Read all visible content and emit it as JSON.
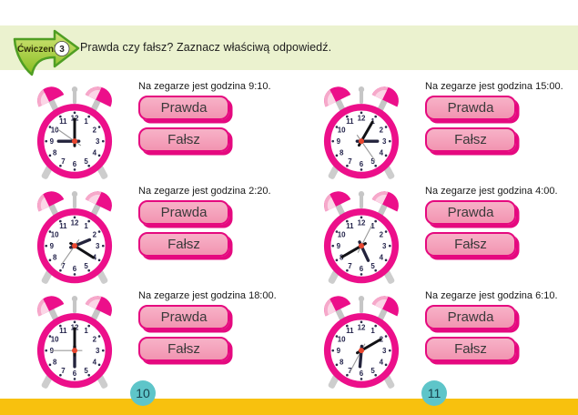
{
  "header": {
    "badge_label": "Ćwiczenie",
    "badge_number": "3",
    "instruction": "Prawda czy fałsz? Zaznacz właściwą odpowiedź."
  },
  "answers": {
    "true_label": "Prawda",
    "false_label": "Fałsz"
  },
  "clock_face": {
    "numerals": [
      "1",
      "2",
      "3",
      "4",
      "5",
      "6",
      "7",
      "8",
      "9",
      "10",
      "11",
      "12"
    ]
  },
  "exercises": [
    {
      "statement": "Na zegarze jest godzina 9:10.",
      "clock": {
        "hour_angle": 270,
        "minute_angle": 0,
        "second_angle": 305
      }
    },
    {
      "statement": "Na zegarze jest godzina 15:00.",
      "clock": {
        "hour_angle": 90,
        "minute_angle": 30,
        "second_angle": 145
      }
    },
    {
      "statement": "Na zegarze jest godzina 2:20.",
      "clock": {
        "hour_angle": 68,
        "minute_angle": 122,
        "second_angle": 215
      }
    },
    {
      "statement": "Na zegarze jest godzina 4:00.",
      "clock": {
        "hour_angle": 155,
        "minute_angle": 240,
        "second_angle": 27
      }
    },
    {
      "statement": "Na zegarze jest godzina 18:00.",
      "clock": {
        "hour_angle": 180,
        "minute_angle": 0,
        "second_angle": 270
      }
    },
    {
      "statement": "Na zegarze jest godzina 6:10.",
      "clock": {
        "hour_angle": 185,
        "minute_angle": 60,
        "second_angle": 208
      }
    }
  ],
  "footer": {
    "left_page_number": "10",
    "right_page_number": "11"
  },
  "colors": {
    "header_band": "#ebf2cf",
    "badge_green": "#8dc321",
    "magenta": "#ec0f8a",
    "button_fill": "#f59fb9",
    "button_border": "#e5097f",
    "footer_bar": "#f8c10e",
    "page_circle": "#5ec5c9"
  }
}
